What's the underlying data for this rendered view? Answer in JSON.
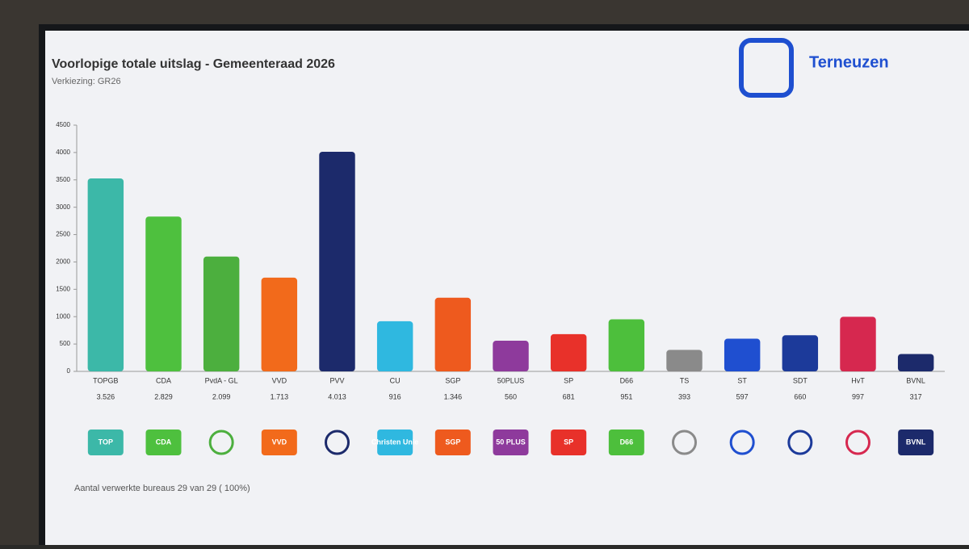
{
  "brand": "Terneuzen",
  "footer": "Aantal verwerkte bureaus 29 van 29 ( 100%)",
  "chart_data": {
    "type": "bar",
    "title": "Voorlopige totale uitslag - Gemeenteraad 2026",
    "subtitle": "Verkiezing: GR26",
    "categories": [
      "TOPGB",
      "CDA",
      "PvdA - GL",
      "VVD",
      "PVV",
      "CU",
      "SGP",
      "50PLUS",
      "SP",
      "D66",
      "TS",
      "ST",
      "SDT",
      "HvT",
      "BVNL"
    ],
    "values": [
      3526,
      2829,
      2099,
      1713,
      4013,
      916,
      1346,
      560,
      681,
      951,
      393,
      597,
      660,
      997,
      317
    ],
    "value_labels": [
      "3.526",
      "2.829",
      "2.099",
      "1.713",
      "4.013",
      "916",
      "1.346",
      "560",
      "681",
      "951",
      "393",
      "597",
      "660",
      "997",
      "317"
    ],
    "colors": [
      "#3cb8a8",
      "#4ec03e",
      "#4caf3e",
      "#f26a1b",
      "#1c2a6b",
      "#2fb8e0",
      "#ee5a1e",
      "#8e3a9c",
      "#e8312a",
      "#4dbf3c",
      "#8a8a8a",
      "#1f4fd0",
      "#1c3a9a",
      "#d6284f",
      "#1c2a6b"
    ],
    "logos": [
      "TOP",
      "CDA",
      null,
      "VVD",
      null,
      "Christen Unie",
      "SGP",
      "50 PLUS",
      "SP",
      "D66",
      null,
      null,
      null,
      null,
      "BVNL"
    ],
    "ylim": [
      0,
      4500
    ],
    "yticks": [
      0,
      500,
      1000,
      1500,
      2000,
      2500,
      3000,
      3500,
      4000,
      4500
    ],
    "grid": false
  }
}
